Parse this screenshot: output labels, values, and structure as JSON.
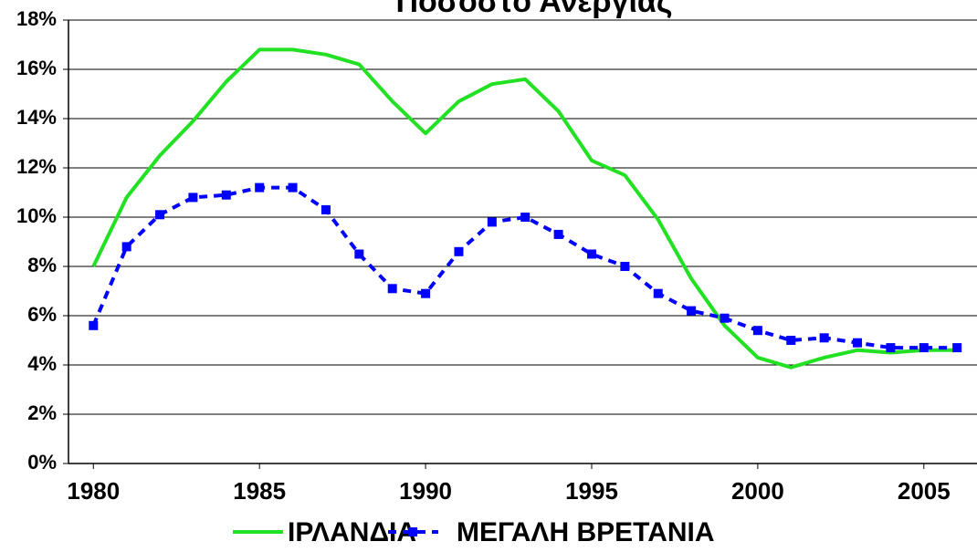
{
  "chart_data": {
    "type": "line",
    "title": "Ποσοστό Ανεργίας",
    "x": [
      1980,
      1981,
      1982,
      1983,
      1984,
      1985,
      1986,
      1987,
      1988,
      1989,
      1990,
      1991,
      1992,
      1993,
      1994,
      1995,
      1996,
      1997,
      1998,
      1999,
      2000,
      2001,
      2002,
      2003,
      2004,
      2005,
      2006
    ],
    "series": [
      {
        "name": "ΙΡΛΑΝΔΙΑ",
        "color": "#22e022",
        "values": [
          8.0,
          10.8,
          12.5,
          13.9,
          15.5,
          16.8,
          16.8,
          16.6,
          16.2,
          14.7,
          13.4,
          14.7,
          15.4,
          15.6,
          14.3,
          12.3,
          11.7,
          9.9,
          7.5,
          5.6,
          4.3,
          3.9,
          4.3,
          4.6,
          4.5,
          4.6,
          4.6
        ]
      },
      {
        "name": "ΜΕΓΑΛΗ ΒΡΕΤΑΝΙΑ",
        "color": "#0000ff",
        "values": [
          5.6,
          8.8,
          10.1,
          10.8,
          10.9,
          11.2,
          11.2,
          10.3,
          8.5,
          7.1,
          6.9,
          8.6,
          9.8,
          10.0,
          9.3,
          8.5,
          8.0,
          6.9,
          6.2,
          5.9,
          5.4,
          5.0,
          5.1,
          4.9,
          4.7,
          4.7,
          4.7
        ]
      }
    ],
    "xlim": [
      1979.25,
      2006.6
    ],
    "xticks": [
      1980,
      1985,
      1990,
      1995,
      2000,
      2005
    ],
    "ylim": [
      0,
      18
    ],
    "yticks": [
      {
        "value": 0,
        "label": "0%"
      },
      {
        "value": 2,
        "label": "2%"
      },
      {
        "value": 4,
        "label": "4%"
      },
      {
        "value": 6,
        "label": "6%"
      },
      {
        "value": 8,
        "label": "8%"
      },
      {
        "value": 10,
        "label": "10%"
      },
      {
        "value": 12,
        "label": "12%"
      },
      {
        "value": 14,
        "label": "14%"
      },
      {
        "value": 16,
        "label": "16%"
      },
      {
        "value": 18,
        "label": "18%"
      }
    ],
    "grid": true,
    "legend": "bottom"
  }
}
